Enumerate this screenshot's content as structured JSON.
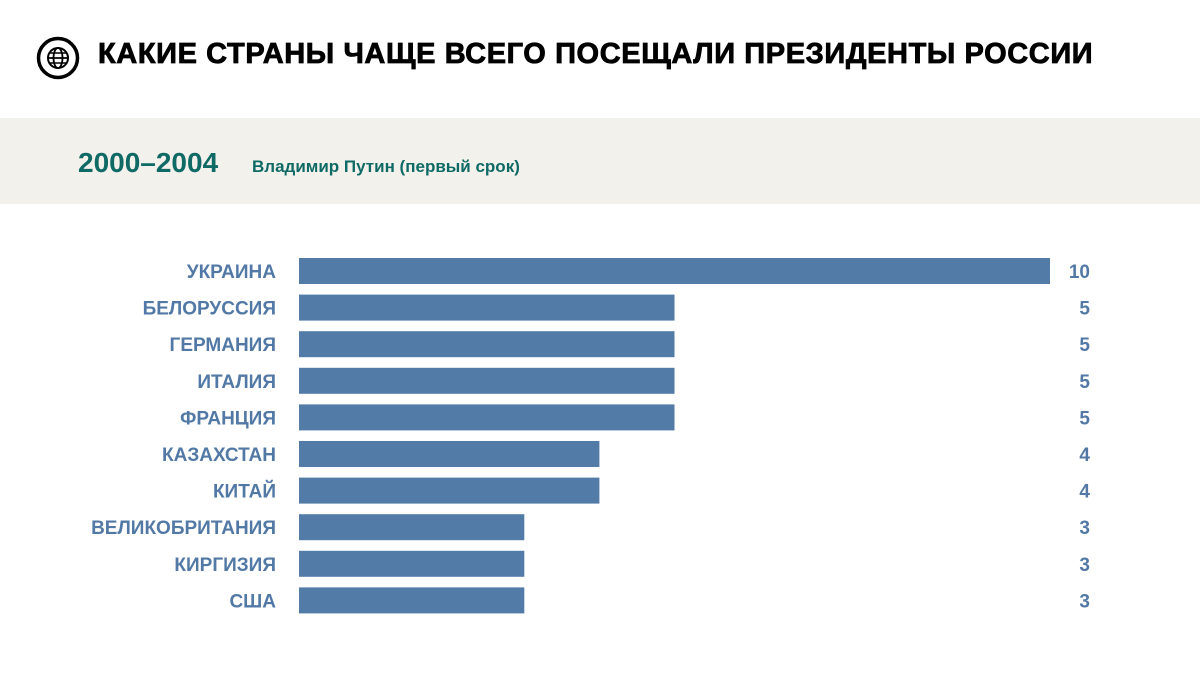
{
  "header": {
    "title": "КАКИЕ СТРАНЫ ЧАЩЕ ВСЕГО ПОСЕЩАЛИ ПРЕЗИДЕНТЫ РОССИИ",
    "icon": "globe-icon"
  },
  "period": {
    "years": "2000–2004",
    "subtitle": "Владимир Путин (первый срок)"
  },
  "colors": {
    "bar": "#527ba8",
    "label": "#5279a6",
    "accent": "#0f6a66",
    "band": "#f2f1ec"
  },
  "chart_data": {
    "type": "bar",
    "orientation": "horizontal",
    "title": "КАКИЕ СТРАНЫ ЧАЩЕ ВСЕГО ПОСЕЩАЛИ ПРЕЗИДЕНТЫ РОССИИ",
    "subtitle": "2000–2004 Владимир Путин (первый срок)",
    "categories": [
      "УКРАИНА",
      "БЕЛОРУССИЯ",
      "ГЕРМАНИЯ",
      "ИТАЛИЯ",
      "ФРАНЦИЯ",
      "КАЗАХСТАН",
      "КИТАЙ",
      "ВЕЛИКОБРИТАНИЯ",
      "КИРГИЗИЯ",
      "США"
    ],
    "values": [
      10,
      5,
      5,
      5,
      5,
      4,
      4,
      3,
      3,
      3
    ],
    "xlim": [
      0,
      10
    ],
    "grid": false
  }
}
